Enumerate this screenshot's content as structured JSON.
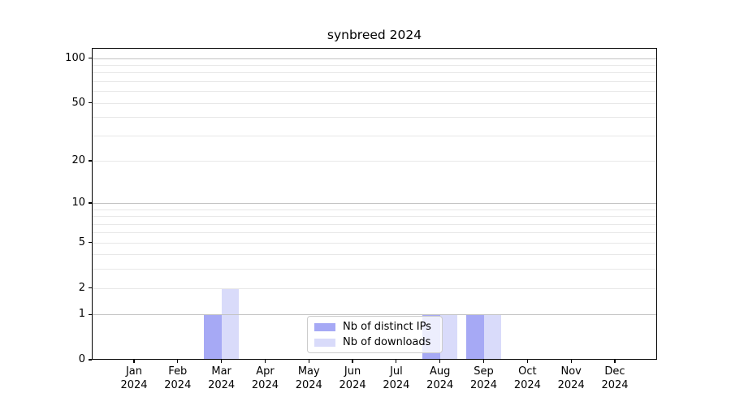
{
  "title": "synbreed 2024",
  "colors": {
    "bar_ips": "#a6a9f5",
    "bar_downloads": "#d9dbfa",
    "grid_major": "#c3c3c3",
    "grid_minor": "#e8e8e8",
    "axis": "#000000",
    "text": "#000000",
    "legend_border": "#cccccc",
    "legend_background": "rgba(255,255,255,0.8)"
  },
  "chart_data": {
    "type": "bar",
    "title": "synbreed 2024",
    "categories": [
      "Jan",
      "Feb",
      "Mar",
      "Apr",
      "May",
      "Jun",
      "Jul",
      "Aug",
      "Sep",
      "Oct",
      "Nov",
      "Dec"
    ],
    "year_label": "2024",
    "series": [
      {
        "name": "Nb of distinct IPs",
        "color": "#a6a9f5",
        "values": [
          0,
          0,
          1,
          0,
          0,
          0,
          0,
          1,
          1,
          0,
          0,
          0
        ]
      },
      {
        "name": "Nb of downloads",
        "color": "#d9dbfa",
        "values": [
          0,
          0,
          2,
          0,
          0,
          0,
          0,
          1,
          1,
          0,
          0,
          0
        ]
      }
    ],
    "y_scale": "log1p",
    "y_axis_max": 117,
    "y_ticks": [
      {
        "value": 0,
        "label": "0"
      },
      {
        "value": 1,
        "label": "1"
      },
      {
        "value": 2,
        "label": "2"
      },
      {
        "value": 5,
        "label": "5"
      },
      {
        "value": 10,
        "label": "10"
      },
      {
        "value": 20,
        "label": "20"
      },
      {
        "value": 50,
        "label": "50"
      },
      {
        "value": 100,
        "label": "100"
      }
    ],
    "grid": {
      "major": [
        1,
        10,
        100
      ],
      "minor": [
        2,
        3,
        4,
        5,
        6,
        7,
        8,
        9,
        20,
        30,
        40,
        50,
        60,
        70,
        80,
        90
      ]
    },
    "legend_position": "lower center",
    "grid_on": true
  }
}
